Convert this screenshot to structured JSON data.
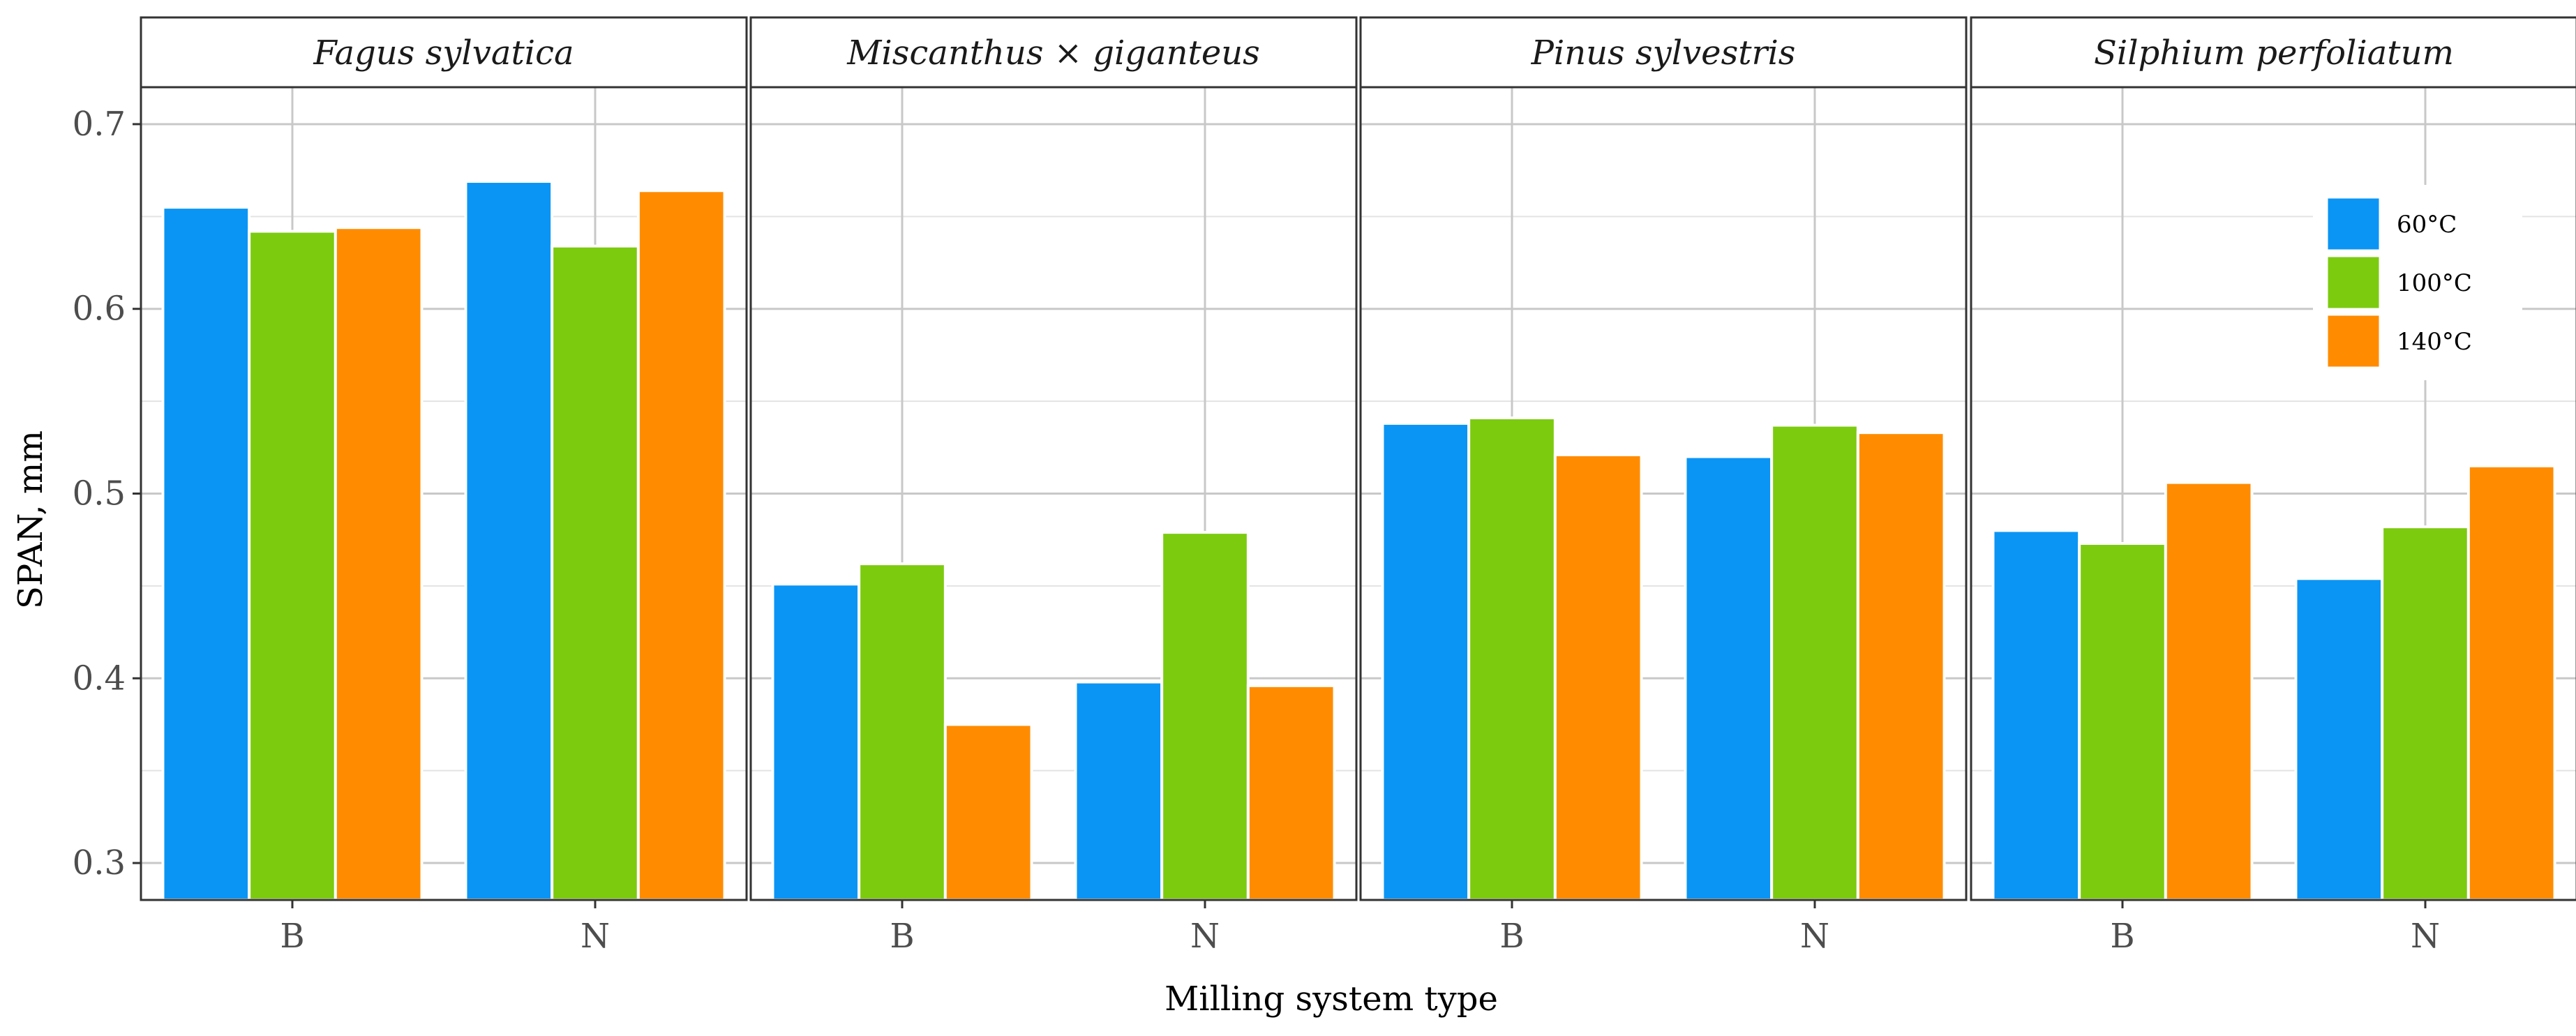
{
  "chart_data": {
    "type": "bar",
    "xlabel": "Milling system type",
    "ylabel": "SPAN, mm",
    "ylim": [
      0.28,
      0.72
    ],
    "yticks": [
      0.3,
      0.4,
      0.5,
      0.6,
      0.7
    ],
    "ytick_labels": [
      "0.3",
      "0.4",
      "0.5",
      "0.6",
      "0.7"
    ],
    "categories": [
      "B",
      "N"
    ],
    "grid": true,
    "legend_position": "top-right",
    "series": [
      {
        "name": "60°C",
        "color": "#0a95f5"
      },
      {
        "name": "100°C",
        "color": "#7ccb0f"
      },
      {
        "name": "140°C",
        "color": "#ff8c00"
      }
    ],
    "facets": [
      {
        "title": "Fagus sylvatica",
        "values": [
          [
            0.655,
            0.642,
            0.644
          ],
          [
            0.669,
            0.634,
            0.664
          ]
        ]
      },
      {
        "title": "Miscanthus × giganteus",
        "values": [
          [
            0.451,
            0.462,
            0.375
          ],
          [
            0.398,
            0.479,
            0.396
          ]
        ]
      },
      {
        "title": "Pinus sylvestris",
        "values": [
          [
            0.538,
            0.541,
            0.521
          ],
          [
            0.52,
            0.537,
            0.533
          ]
        ]
      },
      {
        "title": "Silphium perfoliatum",
        "values": [
          [
            0.48,
            0.473,
            0.506
          ],
          [
            0.454,
            0.482,
            0.515
          ]
        ]
      }
    ]
  }
}
